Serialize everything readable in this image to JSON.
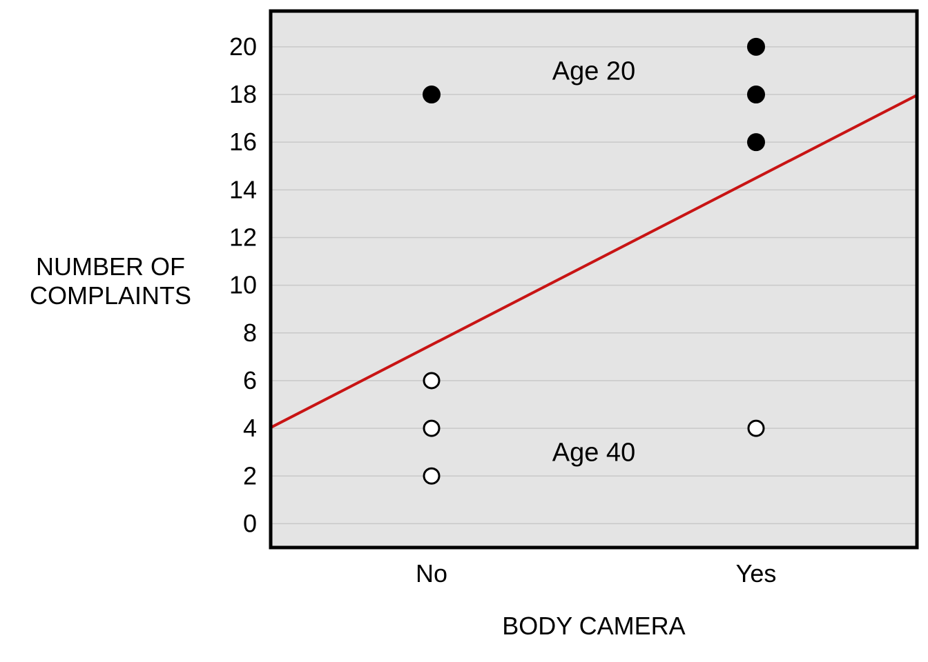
{
  "chart_data": {
    "type": "scatter",
    "title": "",
    "xlabel": "BODY CAMERA",
    "ylabel": [
      "NUMBER OF",
      "COMPLAINTS"
    ],
    "x_categories": [
      "No",
      "Yes"
    ],
    "ylim": [
      -1,
      21.5
    ],
    "yticks": [
      0,
      2,
      4,
      6,
      8,
      10,
      12,
      14,
      16,
      18,
      20
    ],
    "grid": true,
    "colors": {
      "panel": "#e4e4e4",
      "grid": "#c8c8c8",
      "fit_line": "#c81414",
      "filled_point": "#000000",
      "open_point": "#ffffff"
    },
    "series": [
      {
        "group": "Age 20",
        "marker": "filled",
        "points": [
          {
            "x": "No",
            "y": 18
          },
          {
            "x": "Yes",
            "y": 16
          },
          {
            "x": "Yes",
            "y": 18
          },
          {
            "x": "Yes",
            "y": 20
          }
        ]
      },
      {
        "group": "Age 40",
        "marker": "open",
        "points": [
          {
            "x": "No",
            "y": 2
          },
          {
            "x": "No",
            "y": 4
          },
          {
            "x": "No",
            "y": 6
          },
          {
            "x": "Yes",
            "y": 4
          }
        ]
      }
    ],
    "fit_line": {
      "intercept_at_No": 7.5,
      "slope_No_to_Yes": 7
    },
    "annotations": [
      {
        "text": "Age 20",
        "x": 0.5,
        "y": 19
      },
      {
        "text": "Age 40",
        "x": 0.5,
        "y": 3
      }
    ]
  }
}
